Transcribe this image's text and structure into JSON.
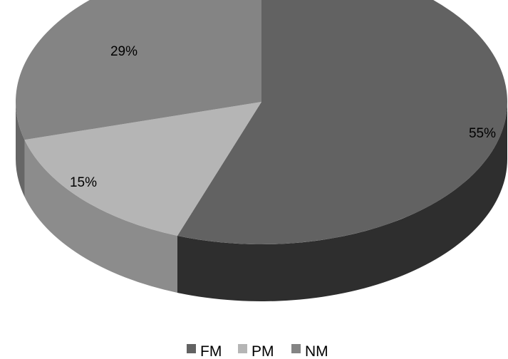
{
  "chart_data": {
    "type": "pie",
    "style": "3d",
    "categories": [
      "FM",
      "PM",
      "NM"
    ],
    "values": [
      55,
      15,
      29
    ],
    "value_labels": [
      "55%",
      "15%",
      "29%"
    ],
    "colors": {
      "FM": {
        "top": "#626262",
        "side": "#2e2e2e"
      },
      "PM": {
        "top": "#b5b5b5",
        "side": "#8c8c8c"
      },
      "NM": {
        "top": "#848484",
        "side": "#666666"
      }
    },
    "legend_position": "bottom"
  }
}
